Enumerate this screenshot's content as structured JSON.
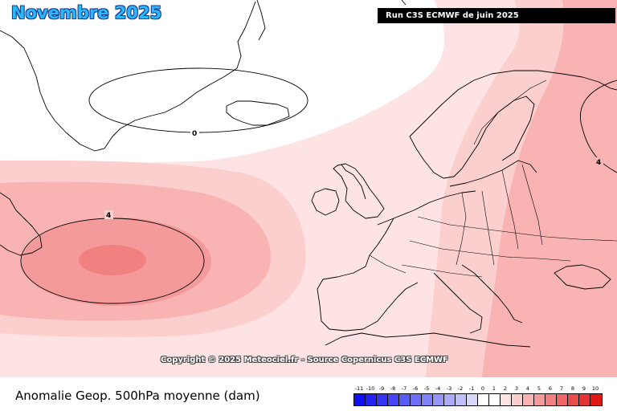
{
  "map": {
    "title": "Novembre 2025",
    "run": "Run C3S ECMWF de juin 2025",
    "copyright": "Copyright © 2025 Meteociel.fr - Source Copernicus C3S ECMWF",
    "contour_labels": [
      "0",
      "4",
      "4"
    ],
    "variable": "Anomalie Geop. 500hPa moyenne (dam)",
    "units": "dam",
    "colors": {
      "title_fill": "#2ab8ff",
      "title_outline": "#1a3a8a",
      "zero": "#ffffff",
      "plus1": "#fde3e3",
      "plus2": "#fccfcf",
      "plus3": "#f9b3b3",
      "plus4": "#f59a9a",
      "plus5": "#f18080"
    }
  },
  "legend": {
    "scale": [
      {
        "label": "-11",
        "color": "#1010f0"
      },
      {
        "label": "-10",
        "color": "#2222f2"
      },
      {
        "label": "-9",
        "color": "#3434f3"
      },
      {
        "label": "-8",
        "color": "#4646f4"
      },
      {
        "label": "-7",
        "color": "#5a5af5"
      },
      {
        "label": "-6",
        "color": "#6e6ef6"
      },
      {
        "label": "-5",
        "color": "#8282f7"
      },
      {
        "label": "-4",
        "color": "#9696f8"
      },
      {
        "label": "-3",
        "color": "#aaaaf9"
      },
      {
        "label": "-2",
        "color": "#c0c0fb"
      },
      {
        "label": "-1",
        "color": "#d8d8fd"
      },
      {
        "label": "0",
        "color": "#ffffff"
      },
      {
        "label": "1",
        "color": "#ffffff"
      },
      {
        "label": "2",
        "color": "#fde3e3"
      },
      {
        "label": "3",
        "color": "#fccfcf"
      },
      {
        "label": "4",
        "color": "#f9b3b3"
      },
      {
        "label": "5",
        "color": "#f59a9a"
      },
      {
        "label": "6",
        "color": "#f18080"
      },
      {
        "label": "7",
        "color": "#ee6666"
      },
      {
        "label": "8",
        "color": "#ea4c4c"
      },
      {
        "label": "9",
        "color": "#e63232"
      },
      {
        "label": "10",
        "color": "#e21818"
      }
    ]
  }
}
